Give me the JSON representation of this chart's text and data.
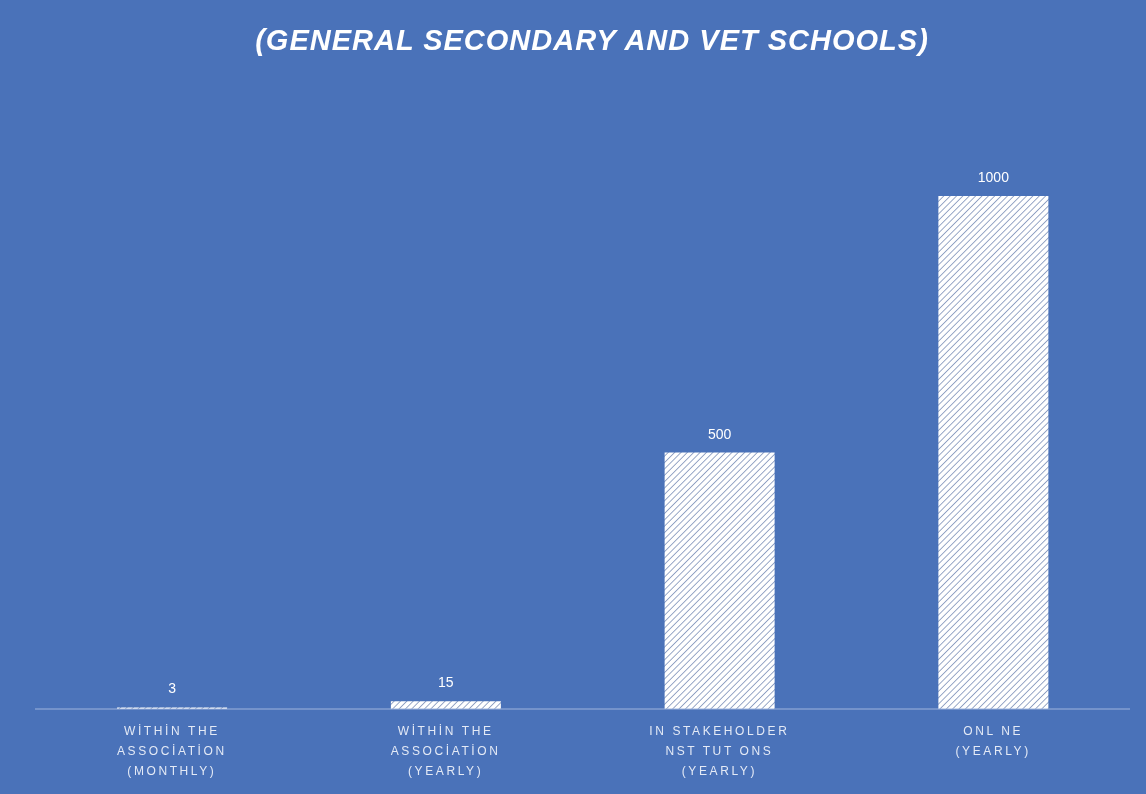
{
  "chart_data": {
    "type": "bar",
    "title": "(GENERAL SECONDARY AND VET SCHOOLS)",
    "categories": [
      "WİTHİN THE\nASSOCİATİON\n(MONTHLY)",
      "WİTHİN THE\nASSOCİATİON\n(YEARLY)",
      "IN STAKEHOLDER\nNST TUT ONS\n(YEARLY)",
      "ONL NE\n(YEARLY)"
    ],
    "values": [
      3,
      15,
      500,
      1000
    ],
    "color": "#ffffff",
    "data_labels": true
  }
}
